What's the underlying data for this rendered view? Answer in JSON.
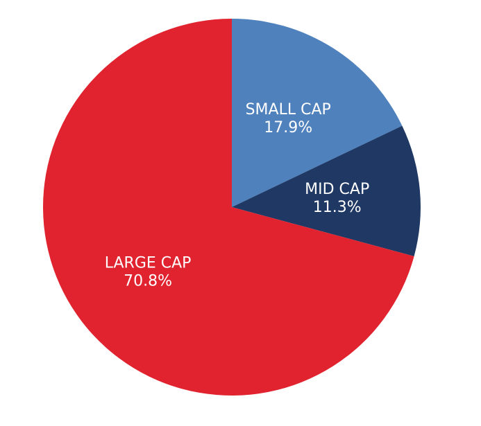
{
  "chart_data": {
    "type": "pie",
    "start_angle_deg": 0,
    "direction": "clockwise",
    "slices": [
      {
        "label": "SMALL CAP",
        "value": 17.9,
        "value_label": "17.9%",
        "color": "#4f81bd"
      },
      {
        "label": "MID CAP",
        "value": 11.3,
        "value_label": "11.3%",
        "color": "#1f3864"
      },
      {
        "label": "LARGE CAP",
        "value": 70.8,
        "value_label": "70.8%",
        "color": "#e0232e"
      }
    ]
  }
}
